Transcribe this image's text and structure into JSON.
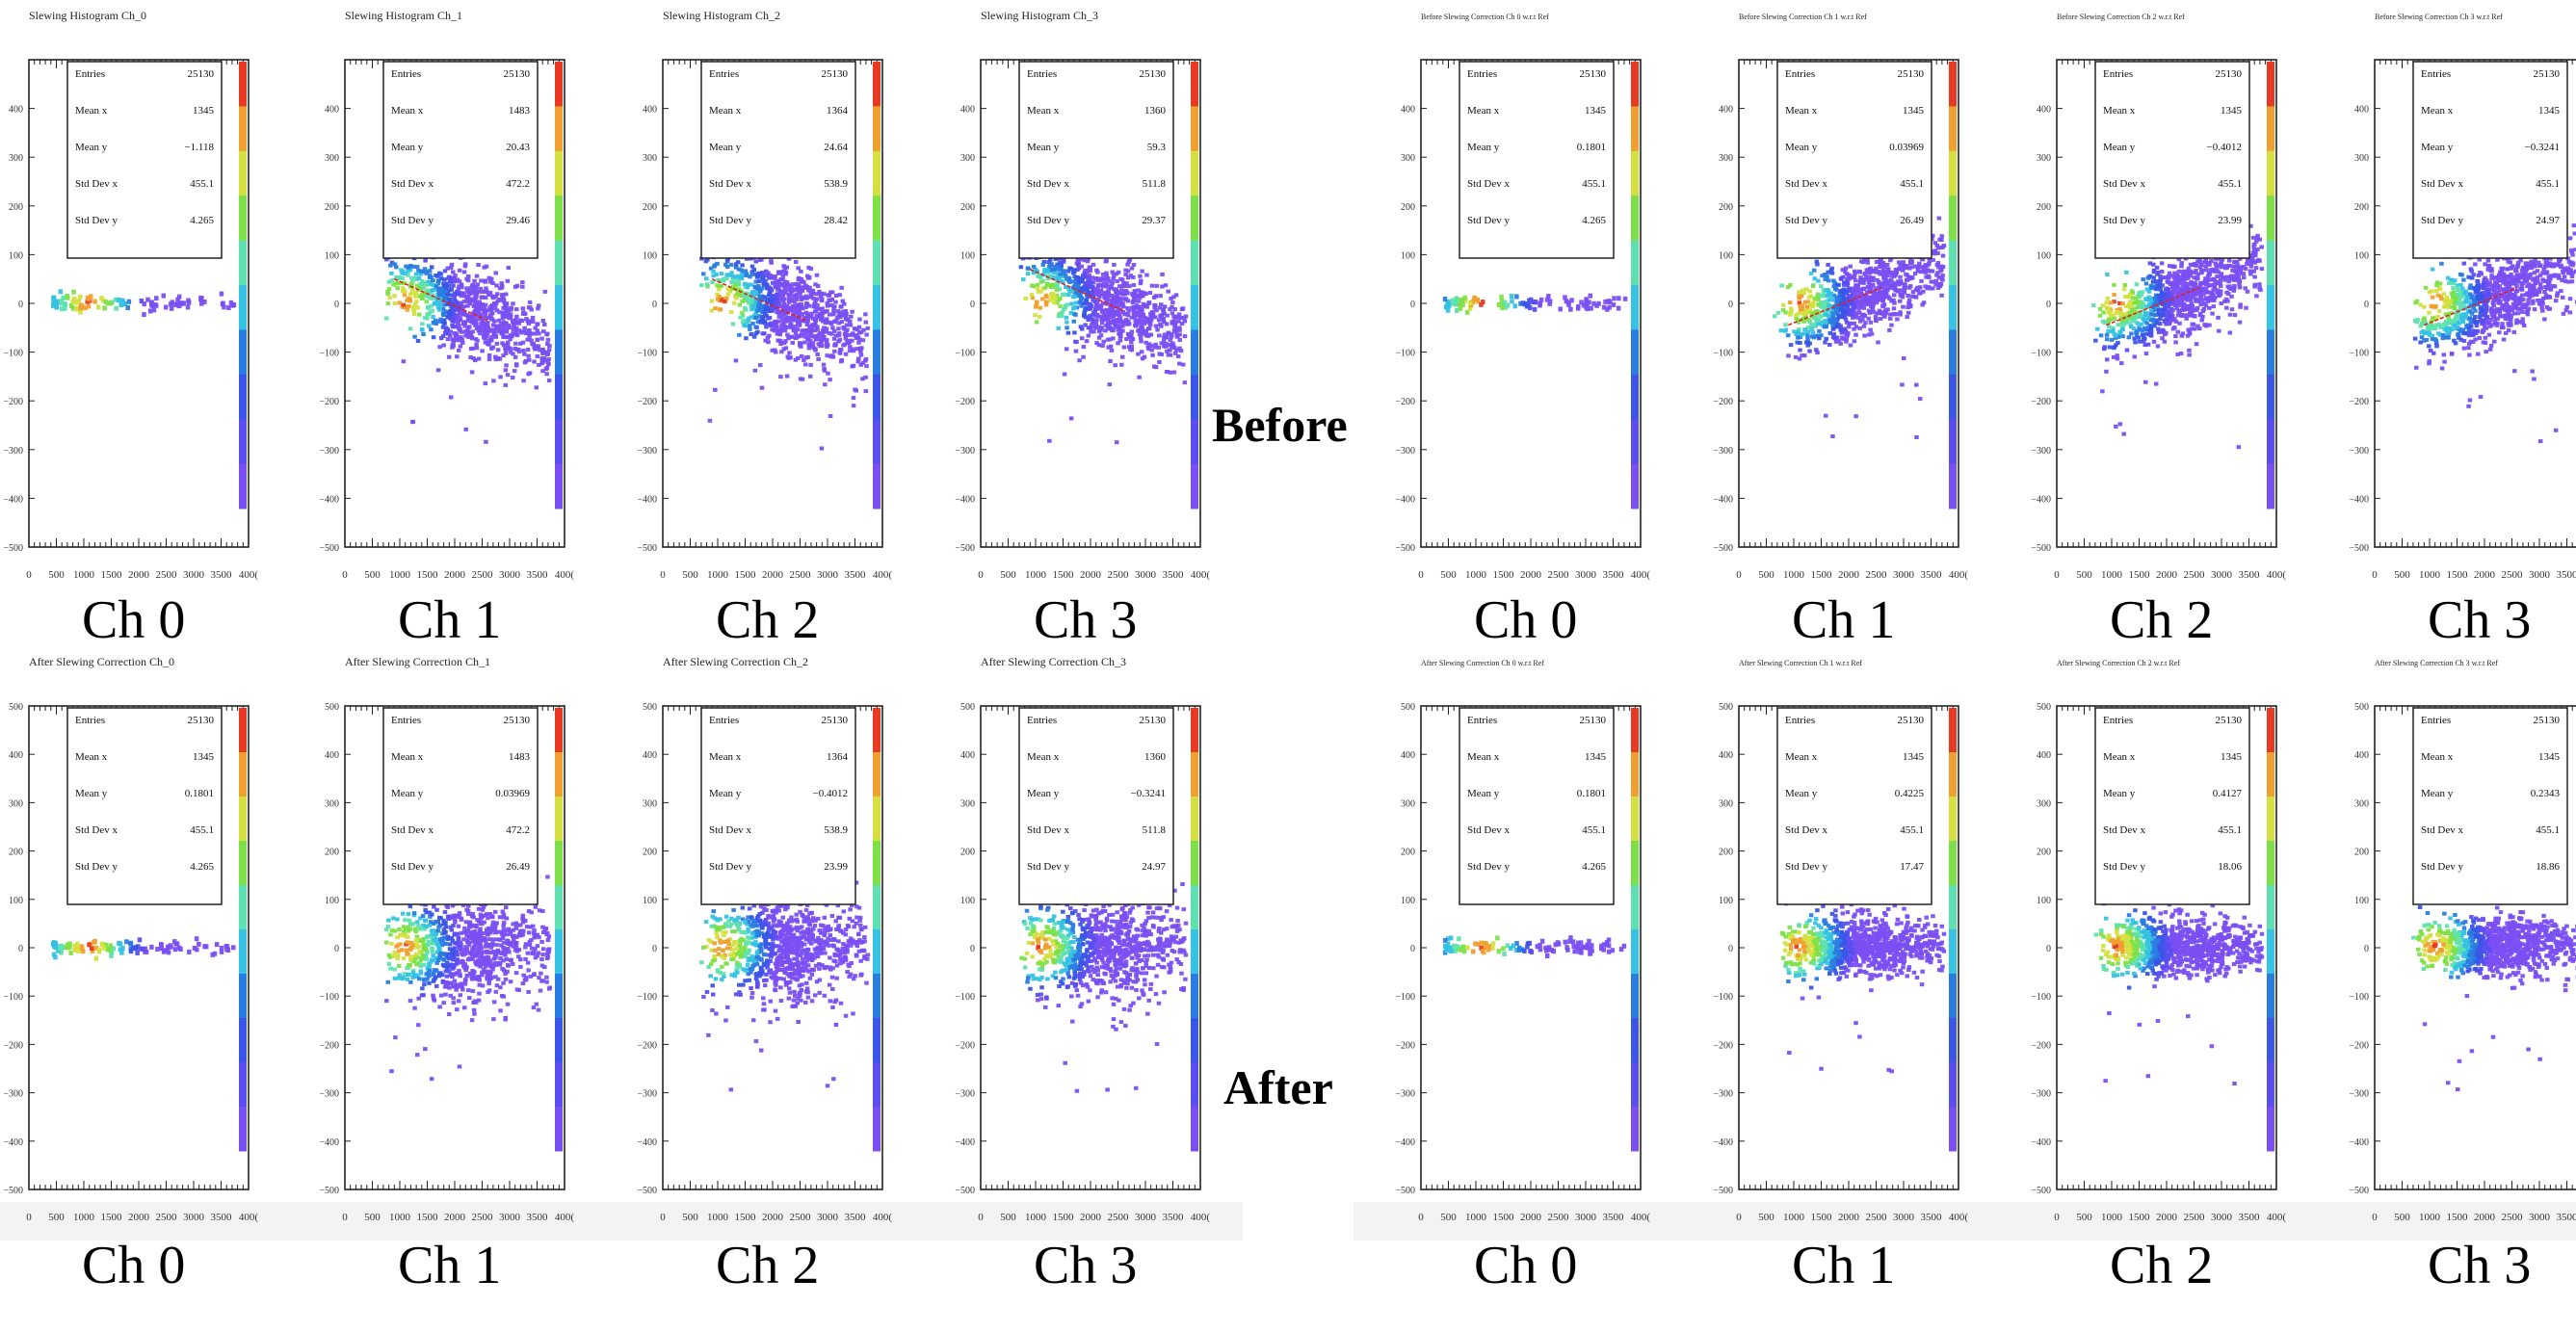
{
  "labels": {
    "before": "Before",
    "after": "After"
  },
  "channel_labels": [
    "Ch 0",
    "Ch 1",
    "Ch 2",
    "Ch 3"
  ],
  "stats_keys": [
    "Entries",
    "Mean x",
    "Mean y",
    "Std Dev x",
    "Std Dev y"
  ],
  "axis": {
    "x_ticks": [
      "0",
      "500",
      "1000",
      "1500",
      "2000",
      "2500",
      "3000",
      "3500",
      "400("
    ],
    "y_ticks_a": [
      "400",
      "300",
      "200",
      "100",
      "0",
      "−100",
      "−200",
      "−300",
      "−400",
      "−500"
    ],
    "y_ticks_b": [
      "500",
      "400",
      "300",
      "200",
      "100",
      "0",
      "−100",
      "−200",
      "−300",
      "−400",
      "−500"
    ]
  },
  "colors": {
    "palette": [
      "#7a4ff2",
      "#5b4ef0",
      "#3a55e8",
      "#2a7de0",
      "#36c2e2",
      "#5fe0b0",
      "#7ee048",
      "#d4e040",
      "#f0a030",
      "#e83a22"
    ],
    "fit_line": "#e02020"
  },
  "chart_data": [
    {
      "type": "heatmap",
      "title": "Slewing Histogram Ch_0",
      "xlim": [
        0,
        4000
      ],
      "ylim": [
        -500,
        500
      ],
      "stats": [
        "25130",
        "1345",
        "−1.118",
        "455.1",
        "4.265"
      ],
      "caption": "Ch 0"
    },
    {
      "type": "heatmap",
      "title": "Slewing Histogram Ch_1",
      "xlim": [
        0,
        4000
      ],
      "ylim": [
        -500,
        500
      ],
      "stats": [
        "25130",
        "1483",
        "20.43",
        "472.2",
        "29.46"
      ],
      "caption": "Ch 1"
    },
    {
      "type": "heatmap",
      "title": "Slewing Histogram Ch_2",
      "xlim": [
        0,
        4000
      ],
      "ylim": [
        -500,
        500
      ],
      "stats": [
        "25130",
        "1364",
        "24.64",
        "538.9",
        "28.42"
      ],
      "caption": "Ch 2"
    },
    {
      "type": "heatmap",
      "title": "Slewing Histogram Ch_3",
      "xlim": [
        0,
        4000
      ],
      "ylim": [
        -500,
        500
      ],
      "stats": [
        "25130",
        "1360",
        "59.3",
        "511.8",
        "29.37"
      ],
      "caption": "Ch 3"
    },
    {
      "type": "heatmap",
      "title": "Before Slewing Correction Ch 0 w.r.t Ref",
      "xlim": [
        0,
        4000
      ],
      "ylim": [
        -500,
        500
      ],
      "stats": [
        "25130",
        "1345",
        "0.1801",
        "455.1",
        "4.265"
      ],
      "caption": "Ch 0"
    },
    {
      "type": "heatmap",
      "title": "Before Slewing Correction Ch 1 w.r.t Ref",
      "xlim": [
        0,
        4000
      ],
      "ylim": [
        -500,
        500
      ],
      "stats": [
        "25130",
        "1345",
        "0.03969",
        "455.1",
        "26.49"
      ],
      "caption": "Ch 1"
    },
    {
      "type": "heatmap",
      "title": "Before Slewing Correction Ch 2 w.r.t Ref",
      "xlim": [
        0,
        4000
      ],
      "ylim": [
        -500,
        500
      ],
      "stats": [
        "25130",
        "1345",
        "−0.4012",
        "455.1",
        "23.99"
      ],
      "caption": "Ch 2"
    },
    {
      "type": "heatmap",
      "title": "Before Slewing Correction Ch 3 w.r.t Ref",
      "xlim": [
        0,
        4000
      ],
      "ylim": [
        -500,
        500
      ],
      "stats": [
        "25130",
        "1345",
        "−0.3241",
        "455.1",
        "24.97"
      ],
      "caption": "Ch 3"
    },
    {
      "type": "heatmap",
      "title": "After Slewing Correction Ch_0",
      "xlim": [
        0,
        4000
      ],
      "ylim": [
        -500,
        500
      ],
      "stats": [
        "25130",
        "1345",
        "0.1801",
        "455.1",
        "4.265"
      ],
      "caption": "Ch 0"
    },
    {
      "type": "heatmap",
      "title": "After Slewing Correction Ch_1",
      "xlim": [
        0,
        4000
      ],
      "ylim": [
        -500,
        500
      ],
      "stats": [
        "25130",
        "1483",
        "0.03969",
        "472.2",
        "26.49"
      ],
      "caption": "Ch 1"
    },
    {
      "type": "heatmap",
      "title": "After Slewing Correction Ch_2",
      "xlim": [
        0,
        4000
      ],
      "ylim": [
        -500,
        500
      ],
      "stats": [
        "25130",
        "1364",
        "−0.4012",
        "538.9",
        "23.99"
      ],
      "caption": "Ch 2"
    },
    {
      "type": "heatmap",
      "title": "After Slewing Correction Ch_3",
      "xlim": [
        0,
        4000
      ],
      "ylim": [
        -500,
        500
      ],
      "stats": [
        "25130",
        "1360",
        "−0.3241",
        "511.8",
        "24.97"
      ],
      "caption": "Ch 3"
    },
    {
      "type": "heatmap",
      "title": "After Slewing Correction Ch 0 w.r.t Ref",
      "xlim": [
        0,
        4000
      ],
      "ylim": [
        -500,
        500
      ],
      "stats": [
        "25130",
        "1345",
        "0.1801",
        "455.1",
        "4.265"
      ],
      "caption": "Ch 0"
    },
    {
      "type": "heatmap",
      "title": "After Slewing Correction Ch 1 w.r.t Ref",
      "xlim": [
        0,
        4000
      ],
      "ylim": [
        -500,
        500
      ],
      "stats": [
        "25130",
        "1345",
        "0.4225",
        "455.1",
        "17.47"
      ],
      "caption": "Ch 1"
    },
    {
      "type": "heatmap",
      "title": "After Slewing Correction Ch 2 w.r.t Ref",
      "xlim": [
        0,
        4000
      ],
      "ylim": [
        -500,
        500
      ],
      "stats": [
        "25130",
        "1345",
        "0.4127",
        "455.1",
        "18.06"
      ],
      "caption": "Ch 2"
    },
    {
      "type": "heatmap",
      "title": "After Slewing Correction Ch 3 w.r.t Ref",
      "xlim": [
        0,
        4000
      ],
      "ylim": [
        -500,
        500
      ],
      "stats": [
        "25130",
        "1345",
        "0.2343",
        "455.1",
        "18.86"
      ],
      "caption": "Ch 3"
    }
  ]
}
